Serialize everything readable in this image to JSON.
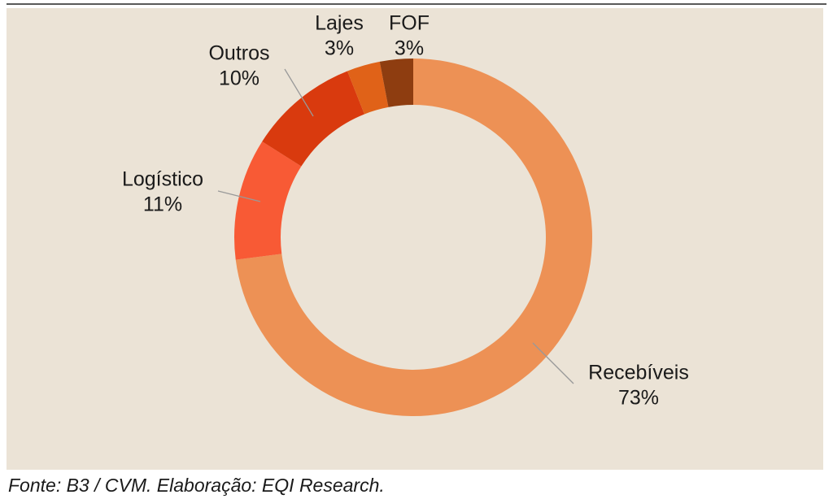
{
  "chart_data": {
    "type": "donut",
    "categories": [
      "Recebíveis",
      "Logístico",
      "Outros",
      "Lajes",
      "FOF"
    ],
    "values": [
      73,
      11,
      10,
      3,
      3
    ],
    "value_labels": [
      "73%",
      "11%",
      "10%",
      "3%",
      "3%"
    ],
    "colors": [
      "#ed9155",
      "#f85a35",
      "#d93a0e",
      "#e06218",
      "#8e3d10"
    ],
    "source": "Fonte: B3 / CVM. Elaboração: EQI Research."
  }
}
